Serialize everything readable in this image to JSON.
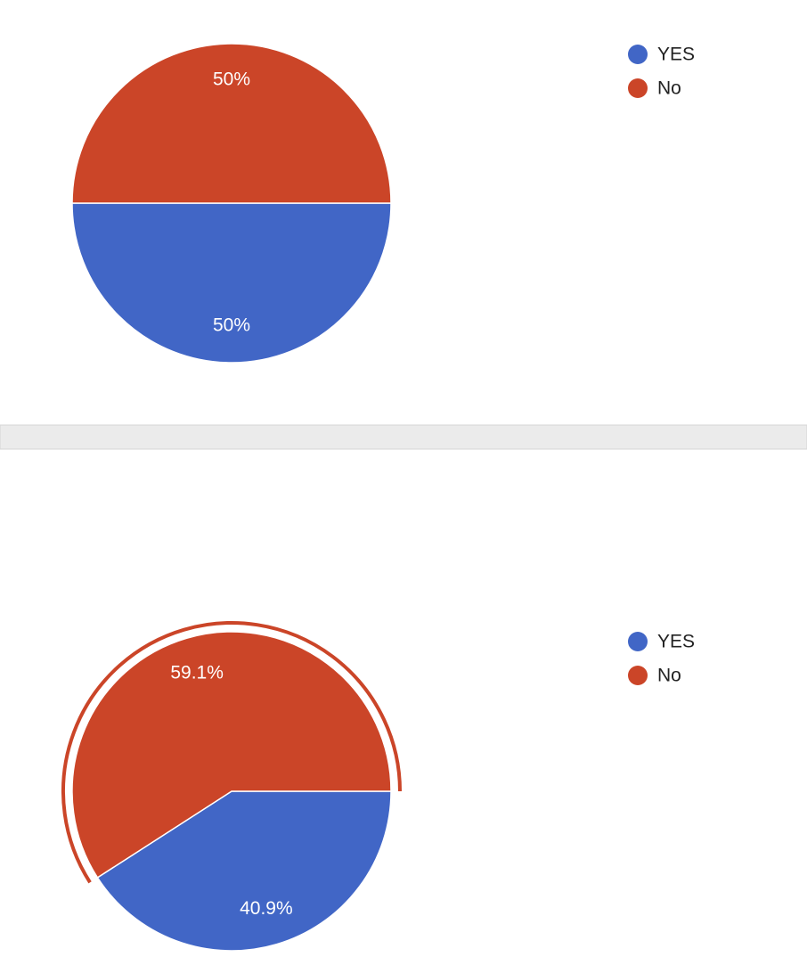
{
  "chart_data": [
    {
      "type": "pie",
      "categories": [
        "YES",
        "No"
      ],
      "values": [
        50,
        50
      ],
      "value_labels": [
        "50%",
        "50%"
      ],
      "colors": [
        "#4166c6",
        "#cb4528"
      ]
    },
    {
      "type": "pie",
      "categories": [
        "YES",
        "No"
      ],
      "values": [
        40.9,
        59.1
      ],
      "value_labels": [
        "40.9%",
        "59.1%"
      ],
      "colors": [
        "#4166c6",
        "#cb4528"
      ],
      "highlight": 1
    }
  ]
}
